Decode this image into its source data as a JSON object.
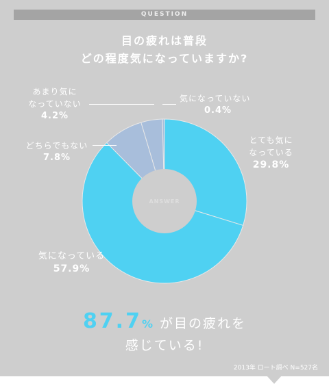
{
  "question_label": "QUESTION",
  "title_line1": "目の疲れは普段",
  "title_line2": "どの程度気になっていますか?",
  "center_label": "ANSWER",
  "chart_data": {
    "type": "pie",
    "title": "目の疲れは普段どの程度気になっていますか?",
    "slices": [
      {
        "label": "とても気になっている",
        "value": 29.8,
        "display": "29.8%",
        "color": "#4fd1f2"
      },
      {
        "label": "気になっている",
        "value": 57.9,
        "display": "57.9%",
        "color": "#4fd1f2"
      },
      {
        "label": "どちらでもない",
        "value": 7.8,
        "display": "7.8%",
        "color": "#a8bedb"
      },
      {
        "label": "あまり気になっていない",
        "value": 4.2,
        "display": "4.2%",
        "color": "#a8bedb"
      },
      {
        "label": "気になっていない",
        "value": 0.4,
        "display": "0.4%",
        "color": "#a8bedb"
      }
    ],
    "start_angle_deg": 0,
    "direction": "clockwise",
    "hole": true,
    "legend": "none"
  },
  "labels": {
    "very": {
      "line1": "とても気に",
      "line2": "なっている",
      "pct": "29.8%"
    },
    "somewhat": {
      "line1": "気になっている",
      "pct": "57.9%"
    },
    "neither": {
      "line1": "どちらでもない",
      "pct": "7.8%"
    },
    "notmuch": {
      "line1": "あまり気に",
      "line2": "なっていない",
      "pct": "4.2%"
    },
    "notatall": {
      "line1": "気になっていない",
      "pct": "0.4%"
    }
  },
  "summary": {
    "number": "87.7",
    "percent_sign": "%",
    "rest_line1": "が目の疲れを",
    "line2": "感じている!"
  },
  "source": "2013年 ロート調べ N=527名",
  "colors": {
    "accent": "#4fd1f2",
    "minor": "#a8bedb",
    "panel": "#cecece"
  }
}
